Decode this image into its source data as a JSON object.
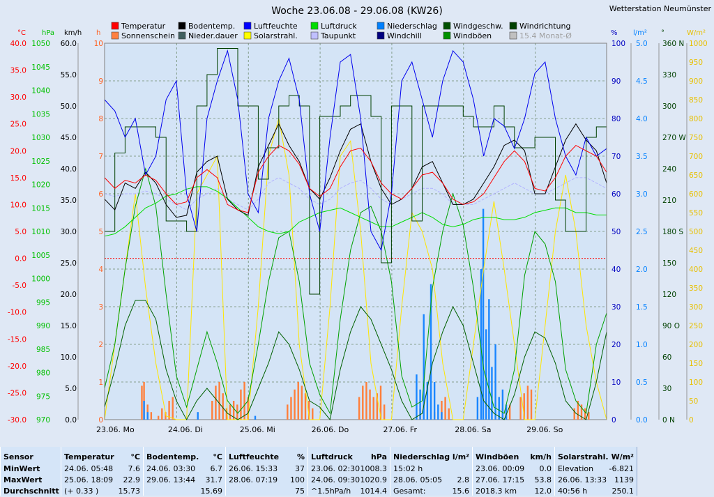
{
  "chart_data": {
    "type": "line",
    "title": "Woche 23.06.08 - 29.06.08 (KW26)",
    "station": "Wetterstation Neumünster",
    "x_labels": [
      "23.06. Mo",
      "24.06. Di",
      "25.06. Mi",
      "26.06. Do",
      "27.06. Fr",
      "28.06. Sa",
      "29.06. So"
    ],
    "axes": {
      "temperature": {
        "unit": "°C",
        "min": -30,
        "max": 40,
        "ticks": [
          "40.0",
          "35.0",
          "30.0",
          "25.0",
          "20.0",
          "15.0",
          "10.0",
          "5.0",
          "0.0",
          "-5.0",
          "-10.0",
          "-15.0",
          "-20.0",
          "-25.0",
          "-30.0"
        ]
      },
      "pressure": {
        "unit": "hPa",
        "min": 970,
        "max": 1050,
        "ticks": [
          "1050",
          "1045",
          "1040",
          "1035",
          "1030",
          "1025",
          "1020",
          "1015",
          "1010",
          "1005",
          "1000",
          "995",
          "990",
          "985",
          "980",
          "975",
          "970"
        ]
      },
      "wind": {
        "unit": "km/h",
        "min": 0,
        "max": 60,
        "ticks": [
          "60.0",
          "55.0",
          "50.0",
          "45.0",
          "40.0",
          "35.0",
          "30.0",
          "25.0",
          "20.0",
          "15.0",
          "10.0",
          "5.0",
          "0.0"
        ]
      },
      "hours": {
        "unit": "h",
        "min": 0,
        "max": 10,
        "ticks": [
          "10",
          "9",
          "8",
          "7",
          "6",
          "5",
          "4",
          "3",
          "2",
          "1",
          "0"
        ]
      },
      "humidity": {
        "unit": "%",
        "min": 0,
        "max": 100,
        "ticks": [
          "100",
          "90",
          "80",
          "70",
          "60",
          "50",
          "40",
          "30",
          "20",
          "10",
          "0"
        ]
      },
      "rain": {
        "unit": "l/m²",
        "min": 0,
        "max": 5,
        "ticks": [
          "5.0",
          "4.5",
          "4.0",
          "3.5",
          "3.0",
          "2.5",
          "2.0",
          "1.5",
          "1.0",
          "0.5",
          "0.0"
        ]
      },
      "direction": {
        "unit": "°",
        "min": 0,
        "max": 360,
        "ticks": [
          "360 N",
          "330",
          "300",
          "270 W",
          "240",
          "210",
          "180 S",
          "150",
          "120",
          "90 O",
          "60",
          "30",
          "0 N"
        ]
      },
      "solar": {
        "unit": "W/m²",
        "min": 0,
        "max": 1000,
        "ticks": [
          "1000",
          "950",
          "900",
          "850",
          "800",
          "750",
          "700",
          "650",
          "600",
          "550",
          "500",
          "450",
          "400",
          "350",
          "300",
          "250",
          "200",
          "150",
          "100",
          "50",
          "0"
        ]
      }
    },
    "legend": [
      {
        "label": "Temperatur",
        "color": "#ff0000"
      },
      {
        "label": "Bodentemp.",
        "color": "#000000"
      },
      {
        "label": "Luftfeuchte",
        "color": "#0000ff"
      },
      {
        "label": "Luftdruck",
        "color": "#00dd00"
      },
      {
        "label": "Niederschlag",
        "color": "#0080ff"
      },
      {
        "label": "Windgeschw.",
        "color": "#005000"
      },
      {
        "label": "Windrichtung",
        "color": "#004000"
      },
      {
        "label": "Sonnenschein",
        "color": "#ff8040"
      },
      {
        "label": "Nieder.dauer",
        "color": "#406060"
      },
      {
        "label": "Solarstrahl.",
        "color": "#ffff00"
      },
      {
        "label": "Taupunkt",
        "color": "#c0c0ff"
      },
      {
        "label": "Windchill",
        "color": "#000080"
      },
      {
        "label": "Windböen",
        "color": "#009000"
      },
      {
        "label": "15.4 Monat-Ø",
        "color": "#c0c0c0"
      }
    ],
    "series": [
      {
        "name": "Temperatur",
        "axis": "temperature",
        "values": [
          15,
          13,
          14.5,
          14,
          15.5,
          14.5,
          12,
          10,
          10.5,
          15,
          16.5,
          15,
          10,
          9,
          8.5,
          16,
          19,
          21,
          20,
          17.5,
          13,
          11.5,
          13,
          17,
          20,
          20.5,
          18,
          14,
          12,
          11,
          13,
          15.5,
          16,
          14,
          11,
          10,
          10.5,
          12,
          15,
          18,
          20,
          18,
          13,
          12.5,
          15,
          19,
          21,
          20,
          19,
          16
        ]
      },
      {
        "name": "Bodentemp.",
        "axis": "temperature",
        "values": [
          11,
          9,
          14,
          13,
          16,
          14,
          10,
          7.6,
          8,
          16,
          18,
          19,
          11,
          9,
          8,
          17,
          21,
          25,
          21,
          18,
          13,
          11,
          15,
          20,
          24,
          25,
          18,
          13,
          10,
          11,
          13,
          17,
          18,
          14,
          10,
          10,
          11,
          14,
          17,
          21,
          22,
          20,
          12,
          12,
          17,
          22,
          25,
          22,
          20,
          14
        ]
      },
      {
        "name": "Luftfeuchte",
        "axis": "humidity",
        "values": [
          85,
          82,
          75,
          80,
          65,
          70,
          85,
          90,
          60,
          50,
          80,
          90,
          98,
          85,
          60,
          55,
          80,
          90,
          96,
          85,
          60,
          50,
          75,
          95,
          97,
          80,
          50,
          45,
          60,
          90,
          95,
          85,
          75,
          90,
          98,
          95,
          85,
          70,
          80,
          78,
          72,
          80,
          92,
          95,
          80,
          70,
          65,
          75,
          70,
          72
        ]
      },
      {
        "name": "Luftdruck",
        "axis": "pressure",
        "values": [
          1009,
          1009.5,
          1011,
          1013,
          1015,
          1016,
          1017.5,
          1018,
          1019,
          1019.5,
          1019.5,
          1018.5,
          1017,
          1015,
          1013,
          1011,
          1010,
          1009.5,
          1010,
          1012,
          1013,
          1014,
          1014.5,
          1015,
          1014,
          1013,
          1012,
          1011,
          1011,
          1012,
          1013,
          1014,
          1013,
          1011.5,
          1011,
          1011.5,
          1012.5,
          1013,
          1013,
          1012.5,
          1012.5,
          1013,
          1014,
          1014.5,
          1015,
          1015,
          1014,
          1014,
          1013.5,
          1013.5
        ]
      },
      {
        "name": "Taupunkt",
        "axis": "temperature",
        "values": [
          12,
          11.5,
          12,
          12,
          12.5,
          12,
          11,
          10,
          9,
          11,
          12,
          13,
          11,
          10,
          9,
          11,
          14,
          15,
          14,
          13,
          11,
          10,
          11,
          13,
          14,
          14.5,
          13,
          11,
          10,
          11,
          12,
          13,
          13,
          12,
          10,
          10,
          10,
          11,
          12,
          13,
          14,
          13,
          12,
          12,
          13,
          14,
          15,
          15,
          14,
          13
        ]
      },
      {
        "name": "Windgeschw.",
        "axis": "wind",
        "values": [
          2,
          8,
          15,
          19,
          19,
          16,
          8,
          3,
          0,
          3,
          5,
          3,
          1,
          0,
          1,
          5,
          9,
          14,
          12,
          8,
          3,
          2,
          0,
          8,
          14,
          18,
          16,
          12,
          8,
          3,
          0,
          1,
          9,
          14,
          18,
          15,
          9,
          3,
          1,
          0,
          4,
          10,
          14,
          13,
          9,
          3,
          1,
          0,
          6,
          14
        ]
      },
      {
        "name": "Windböen",
        "axis": "wind",
        "values": [
          5,
          12,
          24,
          34,
          40,
          34,
          20,
          7,
          2,
          8,
          14,
          9,
          3,
          1,
          3,
          12,
          22,
          29,
          30,
          22,
          9,
          4,
          1,
          16,
          27,
          33,
          34,
          30,
          22,
          7,
          2,
          3,
          21,
          30,
          36,
          31,
          21,
          8,
          2,
          1,
          8,
          23,
          30,
          28,
          22,
          8,
          3,
          1,
          12,
          17
        ]
      },
      {
        "name": "Windrichtung",
        "axis": "direction",
        "values": [
          180,
          255,
          280,
          280,
          280,
          270,
          190,
          190,
          180,
          300,
          330,
          355,
          355,
          300,
          300,
          230,
          260,
          300,
          310,
          300,
          120,
          290,
          290,
          300,
          310,
          310,
          290,
          150,
          300,
          300,
          190,
          300,
          300,
          300,
          300,
          290,
          280,
          280,
          300,
          280,
          260,
          260,
          270,
          270,
          210,
          180,
          180,
          270,
          280,
          280
        ]
      },
      {
        "name": "Solarstrahl.",
        "axis": "solar",
        "values": [
          0,
          200,
          400,
          600,
          350,
          150,
          10,
          0,
          0,
          600,
          650,
          700,
          0,
          0,
          0,
          300,
          700,
          800,
          650,
          200,
          0,
          0,
          300,
          700,
          740,
          500,
          150,
          0,
          0,
          300,
          550,
          500,
          400,
          150,
          0,
          0,
          200,
          400,
          580,
          400,
          200,
          0,
          0,
          250,
          500,
          650,
          500,
          250,
          100,
          0
        ]
      },
      {
        "name": "Sonnenschein",
        "axis": "hours",
        "bars": [
          {
            "x": 0.52,
            "v": 0.9
          },
          {
            "x": 0.55,
            "v": 1.0
          },
          {
            "x": 0.6,
            "v": 0.4
          },
          {
            "x": 0.65,
            "v": 0.2
          },
          {
            "x": 0.75,
            "v": 0.1
          },
          {
            "x": 0.8,
            "v": 0.3
          },
          {
            "x": 0.85,
            "v": 0.2
          },
          {
            "x": 0.9,
            "v": 0.5
          },
          {
            "x": 0.95,
            "v": 0.6
          },
          {
            "x": 1.5,
            "v": 0.5
          },
          {
            "x": 1.55,
            "v": 0.9
          },
          {
            "x": 1.6,
            "v": 1.0
          },
          {
            "x": 1.65,
            "v": 0.7
          },
          {
            "x": 1.7,
            "v": 0.3
          },
          {
            "x": 1.75,
            "v": 0.4
          },
          {
            "x": 1.8,
            "v": 0.5
          },
          {
            "x": 1.85,
            "v": 0.4
          },
          {
            "x": 1.9,
            "v": 0.8
          },
          {
            "x": 1.95,
            "v": 1.0
          },
          {
            "x": 2.0,
            "v": 0.6
          },
          {
            "x": 2.55,
            "v": 0.4
          },
          {
            "x": 2.6,
            "v": 0.6
          },
          {
            "x": 2.65,
            "v": 0.8
          },
          {
            "x": 2.7,
            "v": 1.0
          },
          {
            "x": 2.75,
            "v": 0.9
          },
          {
            "x": 2.8,
            "v": 0.7
          },
          {
            "x": 2.85,
            "v": 0.5
          },
          {
            "x": 2.9,
            "v": 0.3
          },
          {
            "x": 3.55,
            "v": 0.6
          },
          {
            "x": 3.6,
            "v": 0.9
          },
          {
            "x": 3.65,
            "v": 1.0
          },
          {
            "x": 3.7,
            "v": 0.8
          },
          {
            "x": 3.75,
            "v": 0.6
          },
          {
            "x": 3.8,
            "v": 0.7
          },
          {
            "x": 3.85,
            "v": 0.9
          },
          {
            "x": 3.9,
            "v": 0.4
          },
          {
            "x": 4.4,
            "v": 0.3
          },
          {
            "x": 4.6,
            "v": 0.2
          },
          {
            "x": 4.7,
            "v": 0.5
          },
          {
            "x": 4.75,
            "v": 0.6
          },
          {
            "x": 4.8,
            "v": 0.3
          },
          {
            "x": 5.55,
            "v": 0.3
          },
          {
            "x": 5.6,
            "v": 0.2
          },
          {
            "x": 5.65,
            "v": 0.4
          },
          {
            "x": 5.8,
            "v": 0.6
          },
          {
            "x": 5.85,
            "v": 0.7
          },
          {
            "x": 5.9,
            "v": 0.9
          },
          {
            "x": 5.95,
            "v": 0.8
          },
          {
            "x": 6.55,
            "v": 0.3
          },
          {
            "x": 6.6,
            "v": 0.5
          },
          {
            "x": 6.65,
            "v": 0.4
          },
          {
            "x": 6.7,
            "v": 0.3
          },
          {
            "x": 6.75,
            "v": 0.2
          }
        ]
      },
      {
        "name": "Niederschlag",
        "axis": "rain",
        "bars": [
          {
            "x": 0.55,
            "v": 0.25
          },
          {
            "x": 0.6,
            "v": 0.1
          },
          {
            "x": 1.3,
            "v": 0.1
          },
          {
            "x": 2.1,
            "v": 0.05
          },
          {
            "x": 4.35,
            "v": 0.6
          },
          {
            "x": 4.4,
            "v": 0.4
          },
          {
            "x": 4.45,
            "v": 1.4
          },
          {
            "x": 4.5,
            "v": 0.5
          },
          {
            "x": 4.55,
            "v": 1.8
          },
          {
            "x": 4.6,
            "v": 0.5
          },
          {
            "x": 4.65,
            "v": 0.2
          },
          {
            "x": 4.7,
            "v": 0.1
          },
          {
            "x": 5.2,
            "v": 0.3
          },
          {
            "x": 5.25,
            "v": 2.0
          },
          {
            "x": 5.28,
            "v": 2.8
          },
          {
            "x": 5.32,
            "v": 1.2
          },
          {
            "x": 5.36,
            "v": 1.6
          },
          {
            "x": 5.4,
            "v": 0.7
          },
          {
            "x": 5.45,
            "v": 1.0
          },
          {
            "x": 5.5,
            "v": 0.3
          },
          {
            "x": 5.55,
            "v": 0.4
          },
          {
            "x": 5.6,
            "v": 0.2
          }
        ]
      }
    ],
    "reference_line": {
      "axis": "temperature",
      "value": 0
    }
  },
  "stats": {
    "sensor": {
      "title": "Sensor",
      "rows": [
        "MinWert",
        "MaxWert",
        "Durchschnitt"
      ]
    },
    "blocks": [
      {
        "title": "Temperatur",
        "unit": "°C",
        "rows": [
          [
            "24.06.  05:48",
            "7.6"
          ],
          [
            "25.06.  18:09",
            "22.9"
          ],
          [
            "(+ 0.33 )",
            "15.73"
          ]
        ]
      },
      {
        "title": "Bodentemp.",
        "unit": "°C",
        "rows": [
          [
            "24.06.  03:30",
            "6.7"
          ],
          [
            "29.06.  13:44",
            "31.7"
          ],
          [
            "",
            "15.69"
          ]
        ]
      },
      {
        "title": "Luftfeuchte",
        "unit": "%",
        "rows": [
          [
            "26.06.  15:33",
            "37"
          ],
          [
            "28.06.  07:19",
            "100"
          ],
          [
            "",
            "75"
          ]
        ]
      },
      {
        "title": "Luftdruck",
        "unit": "hPa",
        "rows": [
          [
            "23.06.  02:30",
            "1008.3"
          ],
          [
            "24.06.  09:30",
            "1020.9"
          ],
          [
            "^1.5hPa/h",
            "1014.4"
          ]
        ]
      },
      {
        "title": "Niederschlag",
        "unit": "l/m²",
        "rows": [
          [
            "15:02 h",
            ""
          ],
          [
            "28.06.  05:05",
            "2.8"
          ],
          [
            "Gesamt:",
            "15.6"
          ]
        ]
      },
      {
        "title": "Windböen",
        "unit": "km/h",
        "rows": [
          [
            "23.06.  00:09",
            "0.0"
          ],
          [
            "27.06.  17:15",
            "53.8"
          ],
          [
            "2018.3 km",
            "12.0"
          ]
        ]
      },
      {
        "title": "Solarstrahl.",
        "unit": "W/m²",
        "rows": [
          [
            "Elevation",
            "-6.821"
          ],
          [
            "26.06.  13:33",
            "1139"
          ],
          [
            "40:56 h",
            "250.1"
          ]
        ]
      }
    ]
  }
}
